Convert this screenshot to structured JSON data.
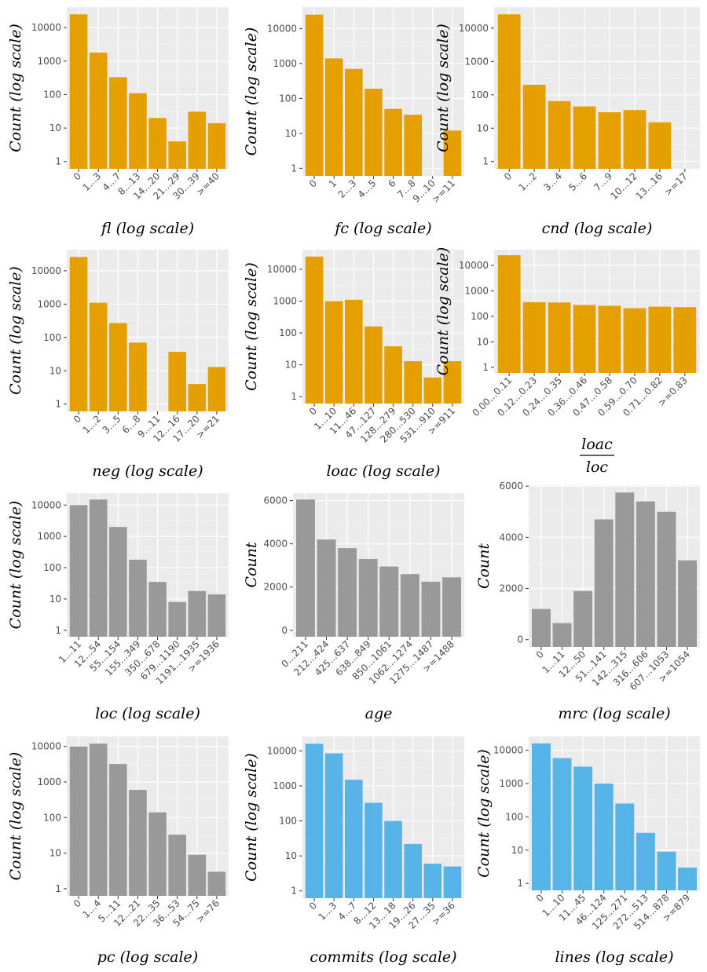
{
  "colors": {
    "orange": "#E69F00",
    "gray": "#999999",
    "blue": "#56B4E9",
    "panel_bg": "#EBEBEB",
    "grid_major": "#FFFFFF",
    "grid_minor": "#F4F4F4",
    "tick_text": "#4D4D4D"
  },
  "chart_data": [
    {
      "type": "bar",
      "scale": "log",
      "color": "orange",
      "xlabel": "fl (log scale)",
      "ylabel": "Count (log scale)",
      "categories": [
        "0",
        "1...3",
        "4...7",
        "8...13",
        "14...20",
        "21...29",
        "30...39",
        ">=40"
      ],
      "values": [
        25000,
        1800,
        330,
        110,
        20,
        4,
        31,
        14
      ],
      "ylim": [
        1,
        25000
      ],
      "yticks": [
        1,
        10,
        100,
        1000,
        10000
      ],
      "ytick_labels": [
        "1",
        "10",
        "100",
        "1000",
        "10000"
      ]
    },
    {
      "type": "bar",
      "scale": "log",
      "color": "orange",
      "xlabel": "fc (log scale)",
      "ylabel": "Count (log scale)",
      "categories": [
        "0",
        "1",
        "2...3",
        "4...5",
        "6",
        "7...8",
        "9...10",
        ">=11"
      ],
      "values": [
        25000,
        1400,
        700,
        190,
        50,
        34,
        0,
        12
      ],
      "ylim": [
        1,
        25000
      ],
      "yticks": [
        1,
        10,
        100,
        1000,
        10000
      ],
      "ytick_labels": [
        "1",
        "10",
        "100",
        "1000",
        "10000"
      ]
    },
    {
      "type": "bar",
      "scale": "log",
      "color": "orange",
      "xlabel": "cnd (log scale)",
      "ylabel": "Count (log scale)",
      "categories": [
        "0",
        "1...2",
        "3...4",
        "5...6",
        "7...9",
        "10...12",
        "13...16",
        ">=17"
      ],
      "values": [
        26000,
        200,
        65,
        45,
        30,
        35,
        15,
        0
      ],
      "ylim": [
        1,
        26000
      ],
      "yticks": [
        1,
        10,
        100,
        1000,
        10000
      ],
      "ytick_labels": [
        "1",
        "10",
        "100",
        "1000",
        "10000"
      ]
    },
    {
      "type": "bar",
      "scale": "log",
      "color": "orange",
      "xlabel": "neg (log scale)",
      "ylabel": "Count (log scale)",
      "categories": [
        "0",
        "1...2",
        "3...5",
        "6...8",
        "9...11",
        "12...16",
        "17...20",
        ">=21"
      ],
      "values": [
        26000,
        1100,
        270,
        70,
        0,
        37,
        4,
        13
      ],
      "ylim": [
        1,
        26000
      ],
      "yticks": [
        1,
        10,
        100,
        1000,
        10000
      ],
      "ytick_labels": [
        "1",
        "10",
        "100",
        "1000",
        "10000"
      ]
    },
    {
      "type": "bar",
      "scale": "log",
      "color": "orange",
      "xlabel": "loac (log scale)",
      "ylabel": "Count (log scale)",
      "categories": [
        "0",
        "1...10",
        "11...46",
        "47...127",
        "128...279",
        "280...530",
        "531...910",
        ">=911"
      ],
      "values": [
        25000,
        1000,
        1100,
        160,
        38,
        13,
        4,
        13
      ],
      "ylim": [
        1,
        25000
      ],
      "yticks": [
        1,
        10,
        100,
        1000,
        10000
      ],
      "ytick_labels": [
        "1",
        "10",
        "100",
        "1000",
        "10000"
      ]
    },
    {
      "type": "bar",
      "scale": "log",
      "color": "orange",
      "xlabel": "",
      "xlabel_fraction": {
        "numerator": "loac",
        "denominator": "loc"
      },
      "ylabel": "Count (log scale)",
      "categories": [
        "0.00...0.11",
        "0.12...0.23",
        "0.24...0.35",
        "0.36...0.46",
        "0.47...0.58",
        "0.59...0.70",
        "0.71...0.82",
        ">=0.83"
      ],
      "values": [
        25000,
        360,
        350,
        280,
        260,
        210,
        240,
        230
      ],
      "ylim": [
        1,
        25000
      ],
      "yticks": [
        1,
        10,
        100,
        1000,
        10000
      ],
      "ytick_labels": [
        "1",
        "10",
        "100",
        "1000",
        "10000"
      ]
    },
    {
      "type": "bar",
      "scale": "log",
      "color": "gray",
      "xlabel": "loc (log scale)",
      "ylabel": "Count (log scale)",
      "categories": [
        "1...11",
        "12...54",
        "55...154",
        "155...349",
        "350...678",
        "679...1190",
        "1191...1935",
        ">=1936"
      ],
      "values": [
        10000,
        15000,
        2000,
        180,
        35,
        8,
        18,
        14
      ],
      "ylim": [
        1,
        15000
      ],
      "yticks": [
        1,
        10,
        100,
        1000,
        10000
      ],
      "ytick_labels": [
        "1",
        "10",
        "100",
        "1000",
        "10000"
      ]
    },
    {
      "type": "bar",
      "scale": "linear",
      "color": "gray",
      "xlabel": "age",
      "ylabel": "Count",
      "categories": [
        "0...211",
        "212...424",
        "425...637",
        "638...849",
        "850...1061",
        "1062...1274",
        "1275...1487",
        ">=1488"
      ],
      "values": [
        6050,
        4200,
        3800,
        3300,
        2950,
        2600,
        2250,
        2450
      ],
      "ylim": [
        0,
        6050
      ],
      "yticks": [
        0,
        2000,
        4000,
        6000
      ],
      "ytick_labels": [
        "0",
        "2000",
        "4000",
        "6000"
      ]
    },
    {
      "type": "bar",
      "scale": "linear",
      "color": "gray",
      "xlabel": "mrc (log scale)",
      "ylabel": "Count",
      "categories": [
        "0",
        "1...11",
        "12...50",
        "51...141",
        "142...315",
        "316...606",
        "607...1053",
        ">=1054"
      ],
      "values": [
        1200,
        650,
        1900,
        4700,
        5750,
        5400,
        5000,
        3100
      ],
      "ylim": [
        0,
        5750
      ],
      "yticks": [
        0,
        2000,
        4000,
        6000
      ],
      "ytick_labels": [
        "0",
        "2000",
        "4000",
        "6000"
      ]
    },
    {
      "type": "bar",
      "scale": "log",
      "color": "gray",
      "xlabel": "pc (log scale)",
      "ylabel": "Count (log scale)",
      "categories": [
        "0",
        "1...4",
        "5...11",
        "12...21",
        "22...35",
        "36...53",
        "54...75",
        ">=76"
      ],
      "values": [
        10000,
        12000,
        3200,
        600,
        140,
        33,
        9,
        3
      ],
      "ylim": [
        1,
        12000
      ],
      "yticks": [
        1,
        10,
        100,
        1000,
        10000
      ],
      "ytick_labels": [
        "1",
        "10",
        "100",
        "1000",
        "10000"
      ]
    },
    {
      "type": "bar",
      "scale": "log",
      "color": "blue",
      "xlabel": "commits (log scale)",
      "ylabel": "Count (log scale)",
      "categories": [
        "0",
        "1...3",
        "4...7",
        "8...12",
        "13...18",
        "19...26",
        "27...35",
        ">=36"
      ],
      "values": [
        16000,
        8500,
        1500,
        330,
        100,
        22,
        6,
        5
      ],
      "ylim": [
        1,
        16000
      ],
      "yticks": [
        1,
        10,
        100,
        1000,
        10000
      ],
      "ytick_labels": [
        "1",
        "10",
        "100",
        "1000",
        "10000"
      ]
    },
    {
      "type": "bar",
      "scale": "log",
      "color": "blue",
      "xlabel": "lines (log scale)",
      "ylabel": "Count (log scale)",
      "categories": [
        "0",
        "1...10",
        "11...45",
        "46...124",
        "125...271",
        "272...513",
        "514...878",
        ">=879"
      ],
      "values": [
        16000,
        5800,
        3200,
        1000,
        250,
        33,
        9,
        3
      ],
      "ylim": [
        1,
        16000
      ],
      "yticks": [
        1,
        10,
        100,
        1000,
        10000
      ],
      "ytick_labels": [
        "1",
        "10",
        "100",
        "1000",
        "10000"
      ]
    }
  ]
}
